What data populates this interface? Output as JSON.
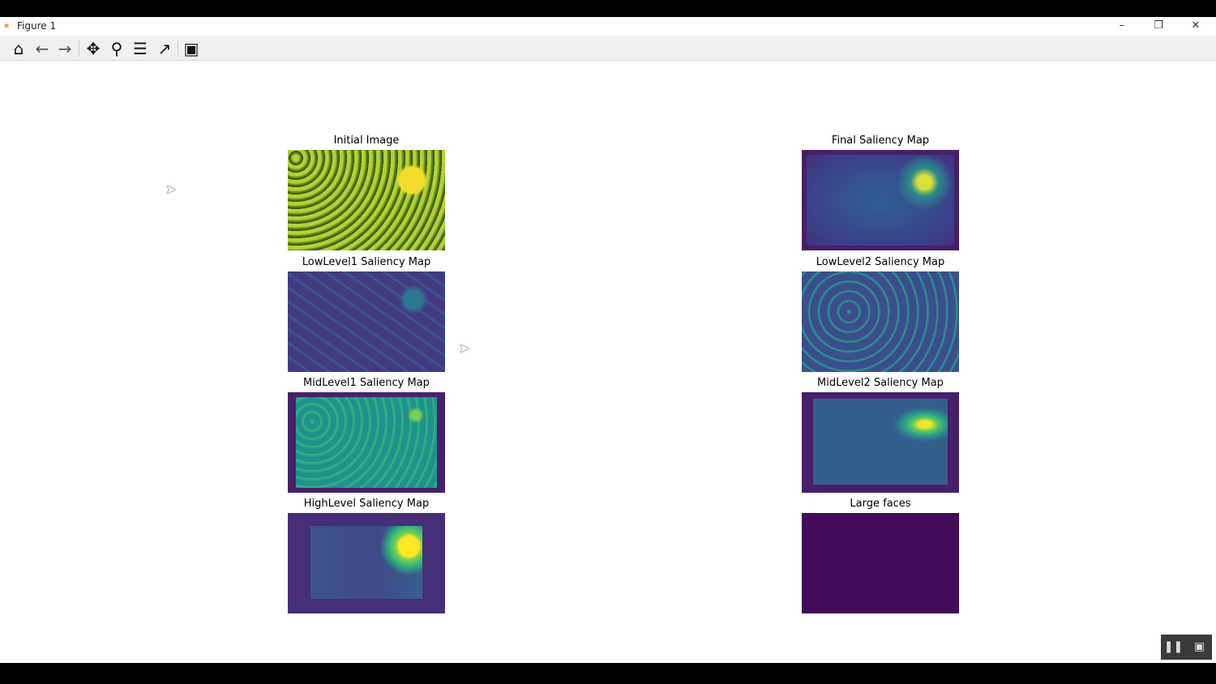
{
  "window": {
    "title": "Figure 1",
    "app_icon": "matplotlib-icon",
    "controls": [
      "minimize",
      "restore",
      "close"
    ]
  },
  "toolbar": {
    "buttons": [
      "home",
      "back",
      "forward",
      "pan",
      "zoom",
      "configure-subplots",
      "edit-axes",
      "save"
    ]
  },
  "plots": [
    {
      "title": "Initial Image"
    },
    {
      "title": "Final Saliency Map"
    },
    {
      "title": "LowLevel1 Saliency Map"
    },
    {
      "title": "LowLevel2 Saliency Map"
    },
    {
      "title": "MidLevel1 Saliency Map"
    },
    {
      "title": "MidLevel2 Saliency Map"
    },
    {
      "title": "HighLevel Saliency Map"
    },
    {
      "title": "Large faces"
    }
  ],
  "colors": {
    "viridis_low": "#440154",
    "viridis_mid": "#21918c",
    "viridis_high": "#fde725",
    "image_green": "#7a9a1e"
  },
  "player": {
    "buttons": [
      "pause",
      "screen"
    ]
  }
}
